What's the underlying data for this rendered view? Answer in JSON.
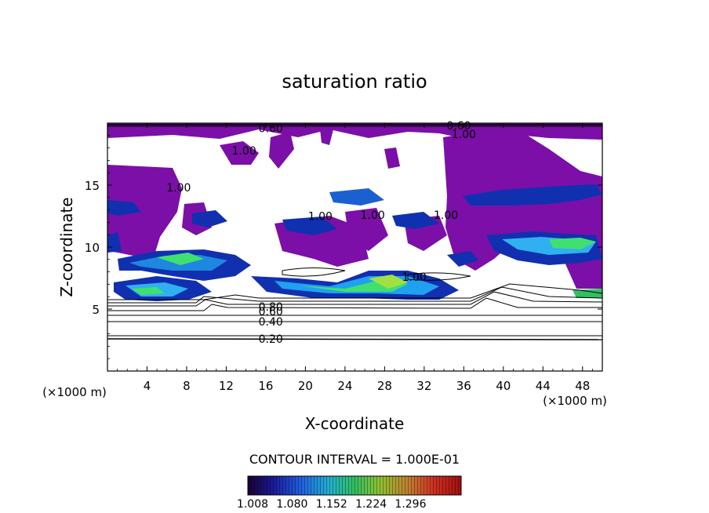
{
  "chart_data": {
    "type": "heatmap",
    "title": "saturation ratio",
    "xlabel": "X-coordinate",
    "ylabel": "Z-coordinate",
    "x_unit": "(×1000 m)",
    "z_unit": "(×1000 m)",
    "xlim": [
      0,
      50
    ],
    "ylim": [
      0,
      20
    ],
    "x_ticks": [
      4,
      8,
      12,
      16,
      20,
      24,
      28,
      32,
      36,
      40,
      44,
      48
    ],
    "y_ticks": [
      5,
      10,
      15
    ],
    "contour_interval_text": "CONTOUR INTERVAL = 1.000E-01",
    "contour_labels": [
      {
        "text": "0.20",
        "x": 16.5,
        "z": 2.6
      },
      {
        "text": "0.40",
        "x": 16.5,
        "z": 4.0
      },
      {
        "text": "0.60",
        "x": 16.5,
        "z": 4.8
      },
      {
        "text": "0.80",
        "x": 16.5,
        "z": 5.2
      },
      {
        "text": "0.60",
        "x": 16.5,
        "z": 19.6
      },
      {
        "text": "0.60",
        "x": 35.5,
        "z": 19.8
      },
      {
        "text": "1.00",
        "x": 36.0,
        "z": 19.1
      },
      {
        "text": "1.00",
        "x": 13.8,
        "z": 17.8
      },
      {
        "text": "1.00",
        "x": 7.2,
        "z": 14.8
      },
      {
        "text": "1.00",
        "x": 21.5,
        "z": 12.5
      },
      {
        "text": "1.00",
        "x": 26.8,
        "z": 12.6
      },
      {
        "text": "1.00",
        "x": 34.2,
        "z": 12.6
      },
      {
        "text": "1.00",
        "x": 31.0,
        "z": 7.6
      }
    ],
    "colorbar": {
      "ticks": [
        "1.008",
        "1.080",
        "1.152",
        "1.224",
        "1.296"
      ],
      "range": [
        1.008,
        1.35
      ]
    },
    "colors": {
      "fill_1_0": "#7b0fa8",
      "low": "#1020a0",
      "mid": "#20a0f0",
      "high": "#40e080"
    }
  }
}
